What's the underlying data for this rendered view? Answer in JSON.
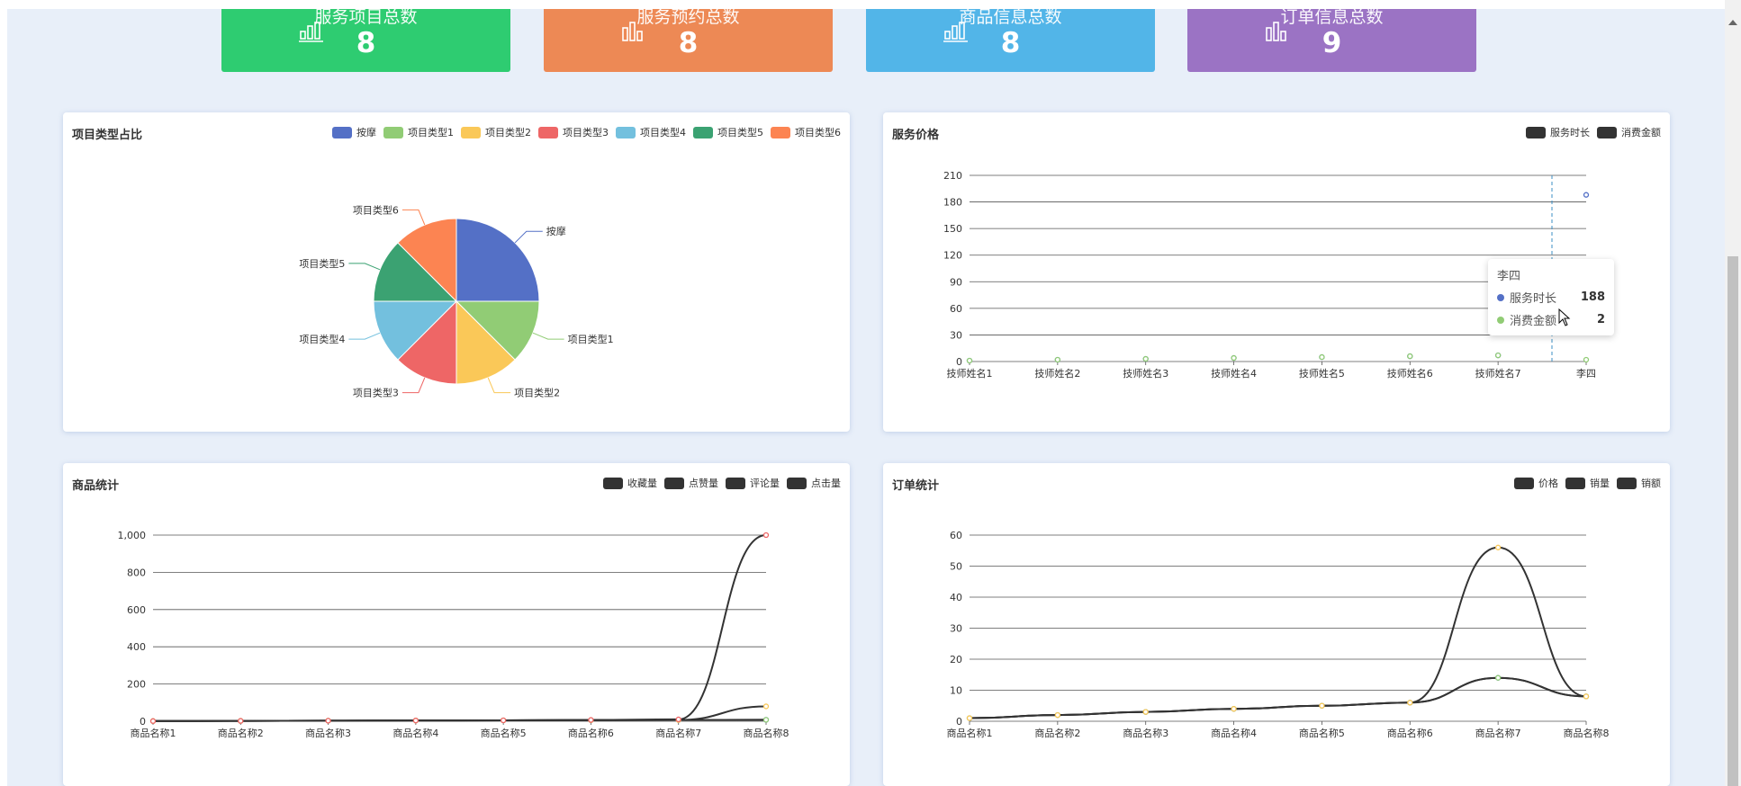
{
  "stats": [
    {
      "label": "服务项目总数",
      "value": "8",
      "color": "#2ecc71",
      "icon": "bar-chart-icon"
    },
    {
      "label": "服务预约总数",
      "value": "8",
      "color": "#ed8955",
      "icon": "bar-chart-icon"
    },
    {
      "label": "商品信息总数",
      "value": "8",
      "color": "#52b5e8",
      "icon": "bar-chart-icon"
    },
    {
      "label": "订单信息总数",
      "value": "9",
      "color": "#9b73c4",
      "icon": "bar-chart-icon"
    }
  ],
  "tooltip": {
    "title": "李四",
    "rows": [
      {
        "name": "服务时长",
        "value": "188",
        "color": "#5470c6"
      },
      {
        "name": "消费金额",
        "value": "2",
        "color": "#91cc75"
      }
    ]
  },
  "chart_data": [
    {
      "type": "pie",
      "title": "项目类型占比",
      "legend": [
        "按摩",
        "项目类型1",
        "项目类型2",
        "项目类型3",
        "项目类型4",
        "项目类型5",
        "项目类型6"
      ],
      "colors": [
        "#5470c6",
        "#91cc75",
        "#fac858",
        "#ee6666",
        "#73c0de",
        "#3ba272",
        "#fc8452"
      ],
      "values": [
        2,
        1,
        1,
        1,
        1,
        1,
        1
      ],
      "legend_placement": "top-right"
    },
    {
      "type": "line",
      "title": "服务价格",
      "categories": [
        "技师姓名1",
        "技师姓名2",
        "技师姓名3",
        "技师姓名4",
        "技师姓名5",
        "技师姓名6",
        "技师姓名7",
        "李四"
      ],
      "series": [
        {
          "name": "服务时长",
          "values": [
            1,
            2,
            3,
            4,
            5,
            6,
            7,
            188
          ],
          "color": "#5470c6"
        },
        {
          "name": "消费金额",
          "values": [
            1,
            2,
            3,
            4,
            5,
            6,
            7,
            2
          ],
          "color": "#91cc75"
        }
      ],
      "ylim": [
        0,
        210
      ],
      "yticks": [
        "0",
        "30",
        "60",
        "90",
        "120",
        "150",
        "180",
        "210"
      ],
      "legend_color": "#333333",
      "grid": true,
      "legend_placement": "top-right"
    },
    {
      "type": "line",
      "title": "商品统计",
      "categories": [
        "商品名称1",
        "商品名称2",
        "商品名称3",
        "商品名称4",
        "商品名称5",
        "商品名称6",
        "商品名称7",
        "商品名称8"
      ],
      "series": [
        {
          "name": "收藏量",
          "values": [
            1,
            2,
            3,
            4,
            5,
            6,
            7,
            8
          ],
          "color": "#5470c6"
        },
        {
          "name": "点赞量",
          "values": [
            1,
            2,
            3,
            4,
            5,
            6,
            7,
            8
          ],
          "color": "#91cc75"
        },
        {
          "name": "评论量",
          "values": [
            1,
            2,
            3,
            4,
            5,
            6,
            7,
            80
          ],
          "color": "#fac858"
        },
        {
          "name": "点击量",
          "values": [
            1,
            2,
            3,
            4,
            5,
            7,
            10,
            1000
          ],
          "color": "#ee6666"
        }
      ],
      "ylim": [
        0,
        1000
      ],
      "yticks": [
        "0",
        "200",
        "400",
        "600",
        "800",
        "1,000"
      ],
      "legend_color": "#333333",
      "grid": true,
      "legend_placement": "top-right"
    },
    {
      "type": "line",
      "title": "订单统计",
      "categories": [
        "商品名称1",
        "商品名称2",
        "商品名称3",
        "商品名称4",
        "商品名称5",
        "商品名称6",
        "商品名称7",
        "商品名称8"
      ],
      "series": [
        {
          "name": "价格",
          "values": [
            1,
            2,
            3,
            4,
            5,
            6,
            14,
            8
          ],
          "color": "#5470c6"
        },
        {
          "name": "销量",
          "values": [
            1,
            2,
            3,
            4,
            5,
            6,
            14,
            8
          ],
          "color": "#91cc75"
        },
        {
          "name": "销额",
          "values": [
            1,
            2,
            3,
            4,
            5,
            6,
            56,
            8
          ],
          "color": "#fac858"
        }
      ],
      "ylim": [
        0,
        60
      ],
      "yticks": [
        "0",
        "10",
        "20",
        "30",
        "40",
        "50",
        "60"
      ],
      "legend_color": "#333333",
      "grid": true,
      "legend_placement": "top-right"
    }
  ]
}
